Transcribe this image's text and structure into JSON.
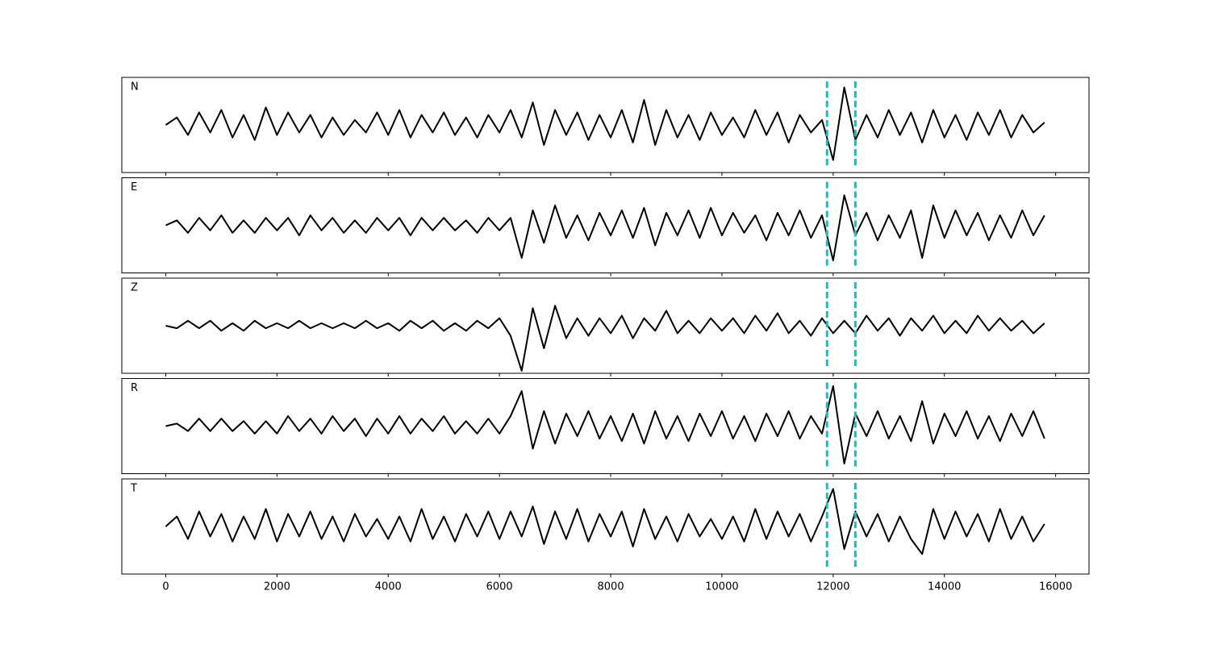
{
  "chart_data": {
    "type": "line",
    "x": [
      0,
      200,
      400,
      600,
      800,
      1000,
      1200,
      1400,
      1600,
      1800,
      2000,
      2200,
      2400,
      2600,
      2800,
      3000,
      3200,
      3400,
      3600,
      3800,
      4000,
      4200,
      4400,
      4600,
      4800,
      5000,
      5200,
      5400,
      5600,
      5800,
      6000,
      6200,
      6400,
      6600,
      6800,
      7000,
      7200,
      7400,
      7600,
      7800,
      8000,
      8200,
      8400,
      8600,
      8800,
      9000,
      9200,
      9400,
      9600,
      9800,
      10000,
      10200,
      10400,
      10600,
      10800,
      11000,
      11200,
      11400,
      11600,
      11800,
      12000,
      12200,
      12400,
      12600,
      12800,
      13000,
      13200,
      13400,
      13600,
      13800,
      14000,
      14200,
      14400,
      14600,
      14800,
      15000,
      15200,
      15400,
      15600,
      15800
    ],
    "series": [
      {
        "name": "N",
        "color": "#000000",
        "values": [
          0,
          3,
          -4,
          5,
          -3,
          6,
          -5,
          4,
          -6,
          7,
          -4,
          5,
          -3,
          4,
          -5,
          3,
          -4,
          2,
          -3,
          5,
          -4,
          6,
          -5,
          4,
          -3,
          5,
          -4,
          3,
          -5,
          4,
          -3,
          6,
          -5,
          9,
          -8,
          6,
          -4,
          5,
          -6,
          4,
          -5,
          6,
          -7,
          10,
          -8,
          6,
          -5,
          4,
          -6,
          5,
          -4,
          3,
          -5,
          6,
          -4,
          5,
          -7,
          4,
          -3,
          2,
          -14,
          15,
          -6,
          4,
          -5,
          6,
          -4,
          5,
          -7,
          6,
          -5,
          4,
          -6,
          5,
          -4,
          6,
          -5,
          4,
          -3,
          1
        ]
      },
      {
        "name": "E",
        "color": "#000000",
        "values": [
          0,
          2,
          -3,
          3,
          -2,
          4,
          -3,
          2,
          -3,
          3,
          -2,
          3,
          -4,
          4,
          -2,
          3,
          -3,
          2,
          -3,
          3,
          -2,
          3,
          -4,
          3,
          -2,
          3,
          -2,
          2,
          -3,
          3,
          -2,
          3,
          -13,
          6,
          -7,
          8,
          -5,
          4,
          -6,
          5,
          -4,
          6,
          -5,
          7,
          -8,
          5,
          -4,
          6,
          -5,
          7,
          -4,
          5,
          -3,
          4,
          -6,
          5,
          -4,
          6,
          -5,
          4,
          -14,
          12,
          -4,
          5,
          -6,
          4,
          -5,
          6,
          -13,
          8,
          -5,
          6,
          -4,
          5,
          -6,
          4,
          -5,
          6,
          -4,
          4
        ]
      },
      {
        "name": "Z",
        "color": "#000000",
        "values": [
          0,
          -1,
          2,
          -1,
          2,
          -2,
          1,
          -2,
          2,
          -1,
          1,
          -1,
          2,
          -1,
          1,
          -1,
          1,
          -1,
          2,
          -1,
          1,
          -2,
          2,
          -1,
          2,
          -2,
          1,
          -2,
          2,
          -1,
          3,
          -4,
          -18,
          7,
          -9,
          8,
          -5,
          3,
          -4,
          3,
          -3,
          4,
          -5,
          3,
          -2,
          6,
          -3,
          2,
          -3,
          3,
          -2,
          3,
          -3,
          4,
          -2,
          5,
          -3,
          2,
          -4,
          3,
          -3,
          2,
          -3,
          4,
          -2,
          3,
          -4,
          3,
          -2,
          4,
          -3,
          2,
          -3,
          4,
          -2,
          3,
          -2,
          2,
          -3,
          1
        ]
      },
      {
        "name": "R",
        "color": "#000000",
        "values": [
          0,
          1,
          -2,
          3,
          -2,
          3,
          -2,
          2,
          -3,
          2,
          -3,
          4,
          -2,
          3,
          -3,
          4,
          -2,
          3,
          -4,
          3,
          -3,
          4,
          -3,
          3,
          -2,
          4,
          -3,
          2,
          -3,
          3,
          -3,
          4,
          14,
          -9,
          6,
          -7,
          5,
          -4,
          6,
          -5,
          4,
          -6,
          5,
          -7,
          6,
          -5,
          4,
          -6,
          5,
          -4,
          6,
          -5,
          4,
          -6,
          5,
          -4,
          6,
          -5,
          4,
          -3,
          16,
          -15,
          5,
          -4,
          6,
          -5,
          4,
          -6,
          10,
          -7,
          5,
          -4,
          6,
          -5,
          4,
          -6,
          5,
          -4,
          6,
          -5
        ]
      },
      {
        "name": "T",
        "color": "#000000",
        "values": [
          0,
          4,
          -5,
          6,
          -4,
          5,
          -6,
          4,
          -5,
          7,
          -6,
          5,
          -4,
          6,
          -5,
          4,
          -6,
          5,
          -4,
          3,
          -5,
          4,
          -6,
          7,
          -5,
          4,
          -6,
          5,
          -4,
          6,
          -5,
          6,
          -4,
          8,
          -7,
          6,
          -5,
          7,
          -6,
          5,
          -4,
          6,
          -8,
          7,
          -5,
          4,
          -6,
          5,
          -4,
          3,
          -5,
          4,
          -6,
          7,
          -5,
          6,
          -4,
          5,
          -6,
          4,
          15,
          -9,
          6,
          -4,
          5,
          -6,
          4,
          -5,
          -11,
          7,
          -5,
          6,
          -4,
          5,
          -6,
          7,
          -5,
          4,
          -6,
          1
        ]
      }
    ],
    "vlines": [
      11890,
      12400
    ],
    "vline_color": "#17bfbf",
    "xlim": [
      -790,
      16600
    ],
    "ylim": [
      -19,
      19
    ],
    "xticks": [
      0,
      2000,
      4000,
      6000,
      8000,
      10000,
      12000,
      14000,
      16000
    ]
  }
}
